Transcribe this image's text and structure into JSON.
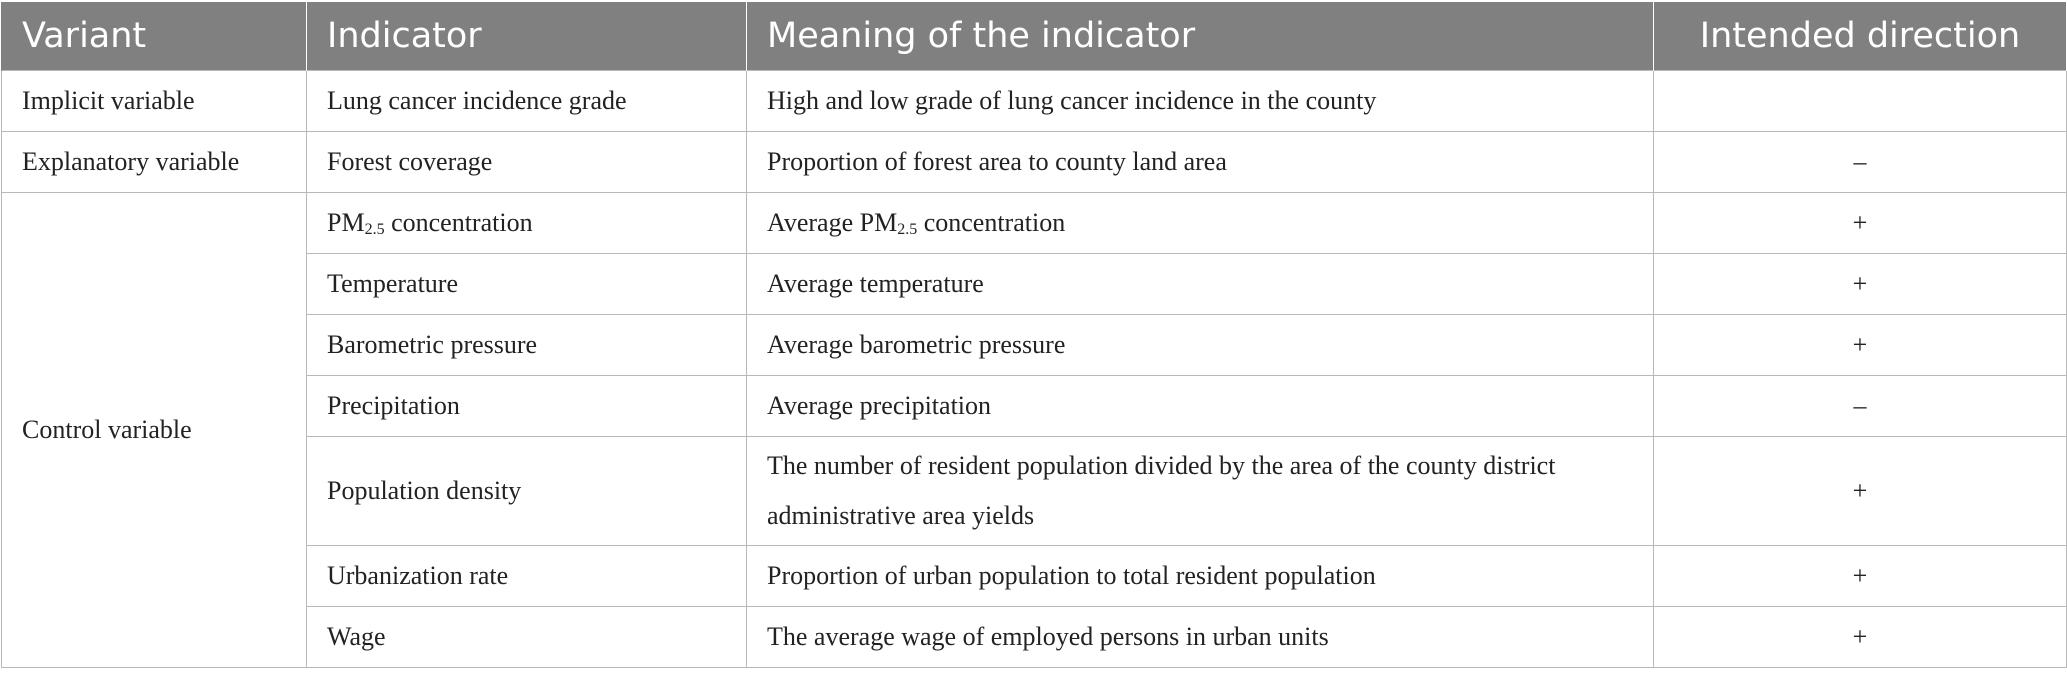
{
  "header": {
    "variant": "Variant",
    "indicator": "Indicator",
    "meaning": "Meaning of the indicator",
    "direction": "Intended direction"
  },
  "rows": [
    {
      "variant": "Implicit variable",
      "indicator": "Lung cancer incidence grade",
      "meaning": "High and low grade of lung cancer incidence in the county",
      "direction": ""
    },
    {
      "variant": "Explanatory variable",
      "indicator": "Forest coverage",
      "meaning": "Proportion of forest area to county land area",
      "direction": "–"
    },
    {
      "variant": "Control variable",
      "indicator_pre": "PM",
      "indicator_sub": "2.5",
      "indicator_post": " concentration",
      "meaning_pre": "Average PM",
      "meaning_sub": "2.5",
      "meaning_post": " concentration",
      "direction": "+"
    },
    {
      "indicator": "Temperature",
      "meaning": "Average temperature",
      "direction": "+"
    },
    {
      "indicator": "Barometric pressure",
      "meaning": "Average barometric pressure",
      "direction": "+"
    },
    {
      "indicator": "Precipitation",
      "meaning": "Average precipitation",
      "direction": "–"
    },
    {
      "indicator": "Population density",
      "meaning": "The number of resident population divided by the area of the county district administrative area yields",
      "direction": "+"
    },
    {
      "indicator": "Urbanization rate",
      "meaning": "Proportion of urban population to total resident population",
      "direction": "+"
    },
    {
      "indicator": "Wage",
      "meaning": "The average wage of employed persons in urban units",
      "direction": "+"
    }
  ]
}
